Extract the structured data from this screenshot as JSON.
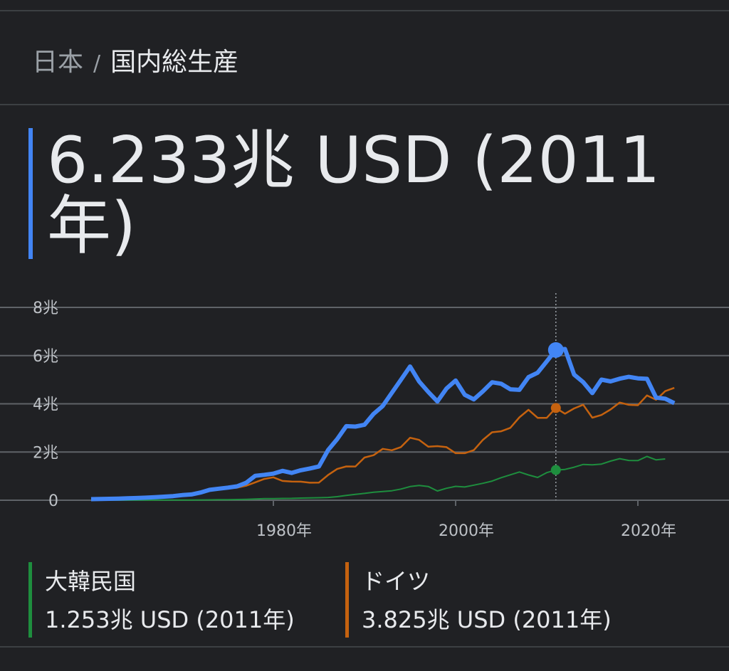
{
  "breadcrumb": {
    "parent": "日本",
    "separator": "/",
    "current": "国内総生産"
  },
  "headline": "6.233兆 USD (2011年)",
  "chart_data": {
    "type": "line",
    "x": [
      1960,
      1961,
      1962,
      1963,
      1964,
      1965,
      1966,
      1967,
      1968,
      1969,
      1970,
      1971,
      1972,
      1973,
      1974,
      1975,
      1976,
      1977,
      1978,
      1979,
      1980,
      1981,
      1982,
      1983,
      1984,
      1985,
      1986,
      1987,
      1988,
      1989,
      1990,
      1991,
      1992,
      1993,
      1994,
      1995,
      1996,
      1997,
      1998,
      1999,
      2000,
      2001,
      2002,
      2003,
      2004,
      2005,
      2006,
      2007,
      2008,
      2009,
      2010,
      2011,
      2012,
      2013,
      2014,
      2015,
      2016,
      2017,
      2018,
      2019,
      2020,
      2021,
      2022,
      2023,
      2024
    ],
    "series": [
      {
        "name": "日本",
        "color": "#4285f4",
        "values": [
          0.044,
          0.054,
          0.06,
          0.069,
          0.081,
          0.091,
          0.106,
          0.124,
          0.147,
          0.172,
          0.212,
          0.24,
          0.318,
          0.432,
          0.479,
          0.522,
          0.576,
          0.721,
          1.014,
          1.055,
          1.105,
          1.218,
          1.134,
          1.243,
          1.318,
          1.399,
          2.079,
          2.532,
          3.072,
          3.054,
          3.133,
          3.584,
          3.909,
          4.454,
          4.998,
          5.546,
          4.923,
          4.493,
          4.098,
          4.636,
          4.968,
          4.374,
          4.182,
          4.519,
          4.893,
          4.831,
          4.601,
          4.579,
          5.106,
          5.289,
          5.759,
          6.233,
          6.272,
          5.212,
          4.897,
          4.445,
          5.004,
          4.931,
          5.041,
          5.118,
          5.056,
          5.037,
          4.256,
          4.213,
          4.026
        ]
      },
      {
        "name": "ドイツ",
        "color": "#c5620f",
        "values": [
          null,
          null,
          null,
          null,
          null,
          null,
          null,
          null,
          null,
          null,
          0.215,
          0.249,
          0.3,
          0.398,
          0.445,
          0.49,
          0.519,
          0.6,
          0.74,
          0.882,
          0.95,
          0.8,
          0.776,
          0.77,
          0.725,
          0.733,
          1.046,
          1.297,
          1.401,
          1.398,
          1.772,
          1.868,
          2.131,
          2.071,
          2.206,
          2.592,
          2.504,
          2.219,
          2.244,
          2.201,
          1.95,
          1.95,
          2.079,
          2.506,
          2.819,
          2.861,
          3.002,
          3.44,
          3.752,
          3.418,
          3.418,
          3.825,
          3.59,
          3.807,
          3.961,
          3.424,
          3.537,
          3.763,
          4.052,
          3.958,
          3.94,
          4.349,
          4.164,
          4.526,
          4.66
        ]
      },
      {
        "name": "大韓民国",
        "color": "#1e8e3e",
        "values": [
          0.004,
          0.002,
          0.003,
          0.004,
          0.003,
          0.003,
          0.004,
          0.005,
          0.006,
          0.008,
          0.009,
          0.01,
          0.011,
          0.014,
          0.02,
          0.022,
          0.03,
          0.039,
          0.053,
          0.067,
          0.065,
          0.073,
          0.078,
          0.088,
          0.098,
          0.102,
          0.116,
          0.147,
          0.199,
          0.246,
          0.284,
          0.331,
          0.36,
          0.394,
          0.464,
          0.567,
          0.61,
          0.57,
          0.383,
          0.497,
          0.576,
          0.548,
          0.627,
          0.702,
          0.793,
          0.935,
          1.053,
          1.172,
          1.047,
          0.944,
          1.144,
          1.253,
          1.278,
          1.37,
          1.484,
          1.466,
          1.5,
          1.623,
          1.725,
          1.651,
          1.645,
          1.818,
          1.674,
          1.713,
          null
        ]
      }
    ],
    "xlim": [
      1950,
      2030
    ],
    "xticks": [
      {
        "value": 1980,
        "label": "1980年"
      },
      {
        "value": 2000,
        "label": "2000年"
      },
      {
        "value": 2020,
        "label": "2020年"
      }
    ],
    "ylim": [
      0,
      8
    ],
    "yticks": [
      0,
      {
        "value": 2,
        "label": "2兆"
      },
      {
        "value": 4,
        "label": "4兆"
      },
      {
        "value": 6,
        "label": "6兆"
      },
      {
        "value": 8,
        "label": "8兆"
      }
    ],
    "grid": true,
    "highlight": 2011
  },
  "legend": [
    {
      "name": "大韓民国",
      "value": "1.253兆 USD (2011年)",
      "color": "#1e8e3e"
    },
    {
      "name": "ドイツ",
      "value": "3.825兆 USD (2011年)",
      "color": "#c5620f"
    }
  ]
}
